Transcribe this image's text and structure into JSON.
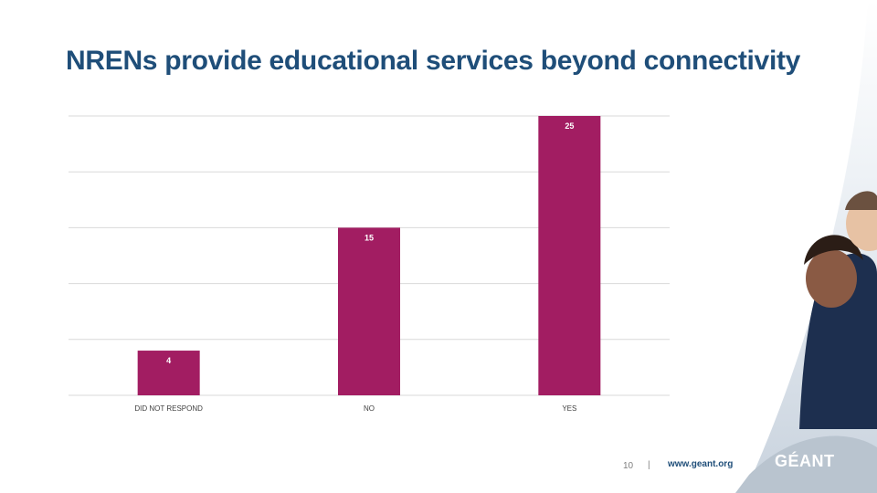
{
  "slide": {
    "title": "NRENs provide educational services beyond connectivity",
    "page_number": "10",
    "separator": "|",
    "footer_url": "www.geant.org",
    "logo_text": "GÉANT"
  },
  "colors": {
    "title": "#1f4e79",
    "bar": "#a21d62",
    "grid": "#d9d9d9",
    "tick_label": "#404040",
    "bar_label": "#ffffff"
  },
  "chart_data": {
    "type": "bar",
    "categories": [
      "DID NOT RESPOND",
      "NO",
      "YES"
    ],
    "values": [
      4,
      15,
      25
    ],
    "ylim": [
      0,
      25
    ],
    "gridlines": [
      0,
      5,
      10,
      15,
      20,
      25
    ],
    "grid": true,
    "data_labels": true,
    "legend": "none"
  }
}
